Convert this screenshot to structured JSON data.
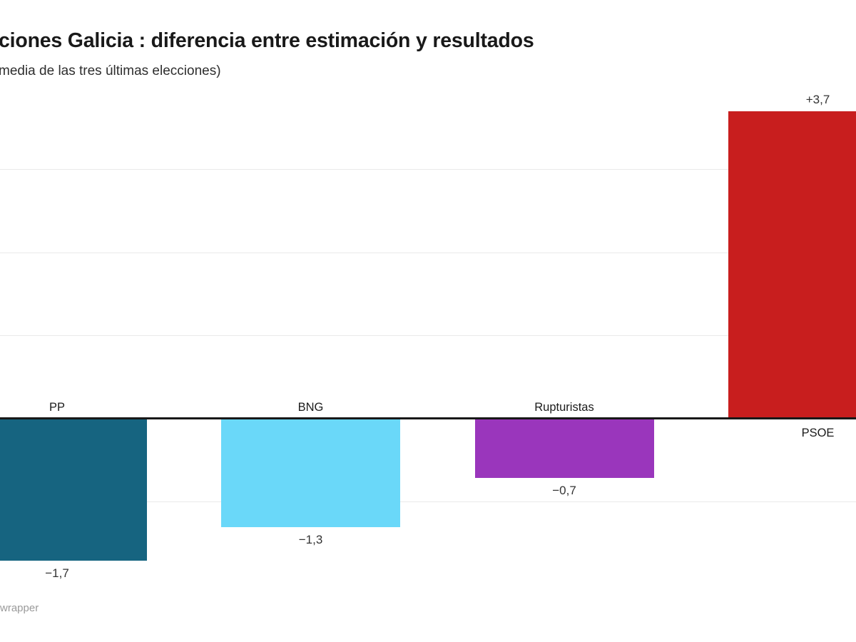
{
  "header": {
    "title": "ciones Galicia : diferencia entre estimación y resultados",
    "subtitle": "media de las tres últimas elecciones)"
  },
  "footer": {
    "watermark": "wrapper"
  },
  "chart_data": {
    "type": "bar",
    "title": "ciones Galicia : diferencia entre estimación y resultados",
    "subtitle": "media de las tres últimas elecciones)",
    "categories": [
      "PP",
      "BNG",
      "Rupturistas",
      "PSOE"
    ],
    "values": [
      -1.7,
      -1.3,
      -0.7,
      3.7
    ],
    "value_labels": [
      "−1,7",
      "−1,3",
      "−0,7",
      "+3,7"
    ],
    "bar_colors": [
      "#166480",
      "#6AD8F9",
      "#9A36BC",
      "#C81E1E"
    ],
    "ylim": [
      -1.8,
      3.8
    ],
    "gridline_values": [
      3,
      2,
      1,
      -1
    ],
    "zero_line_value": 0,
    "grid": true,
    "legend_position": "none",
    "gridline_color": "#e9e9e9",
    "zero_line_color": "#181818",
    "background_color": "#ffffff",
    "crop_note_left_partial_bar": "PP",
    "crop_note_right_partial_bar": "PSOE"
  }
}
